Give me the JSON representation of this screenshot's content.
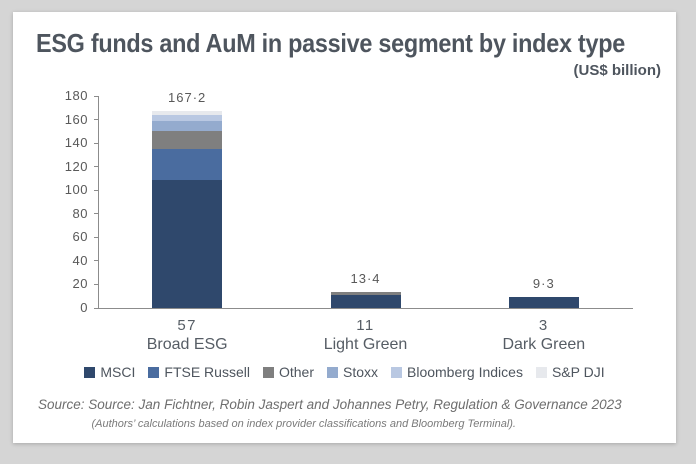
{
  "header": {
    "title": "ESG funds and AuM in passive segment by index type",
    "subtitle": "(US$ billion)"
  },
  "chart_data": {
    "type": "bar",
    "stacked": true,
    "categories": [
      "Broad ESG",
      "Light Green",
      "Dark Green"
    ],
    "fund_counts": [
      "57",
      "11",
      "3"
    ],
    "series": [
      {
        "name": "MSCI",
        "color": "#2f486c",
        "values": [
          108.5,
          11.4,
          9.3
        ]
      },
      {
        "name": "FTSE Russell",
        "color": "#4a6c9f",
        "values": [
          26.3,
          0,
          0
        ]
      },
      {
        "name": "Other",
        "color": "#7f7f7f",
        "values": [
          15.5,
          2.0,
          0
        ]
      },
      {
        "name": "Stoxx",
        "color": "#94abce",
        "values": [
          8.9,
          0,
          0
        ]
      },
      {
        "name": "Bloomberg Indices",
        "color": "#b9c8e2",
        "values": [
          5.1,
          0,
          0
        ]
      },
      {
        "name": "S&P DJI",
        "color": "#e7e9ed",
        "values": [
          2.9,
          0,
          0
        ]
      }
    ],
    "totals_display": [
      "167·2",
      "13·4",
      "9·3"
    ],
    "title": "ESG funds and AuM in passive segment by index type",
    "ylabel": "",
    "xlabel": "",
    "ylim": [
      0,
      180
    ],
    "ytick_step": 20,
    "grid": false,
    "legend_position": "bottom"
  },
  "footer": {
    "line1": "Source: Source: Jan Fichtner, Robin Jaspert and Johannes Petry, Regulation & Governance 2023",
    "line2": "(Authors’ calculations based on index provider classifications and Bloomberg Terminal)."
  }
}
